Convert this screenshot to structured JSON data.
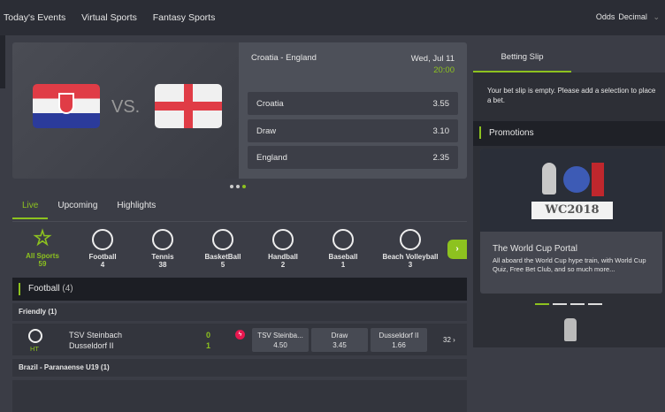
{
  "nav": {
    "items": [
      "Today's Events",
      "Virtual Sports",
      "Fantasy Sports"
    ],
    "odds_label": "Odds",
    "odds_value": "Decimal"
  },
  "hero": {
    "match": "Croatia - England",
    "date": "Wed, Jul 11",
    "time": "20:00",
    "vs": "VS.",
    "odds": [
      {
        "label": "Croatia",
        "value": "3.55"
      },
      {
        "label": "Draw",
        "value": "3.10"
      },
      {
        "label": "England",
        "value": "2.35"
      }
    ]
  },
  "tabs": [
    "Live",
    "Upcoming",
    "Highlights"
  ],
  "sports": [
    {
      "name": "All Sports",
      "count": "59"
    },
    {
      "name": "Football",
      "count": "4"
    },
    {
      "name": "Tennis",
      "count": "38"
    },
    {
      "name": "BasketBall",
      "count": "5"
    },
    {
      "name": "Handball",
      "count": "2"
    },
    {
      "name": "Baseball",
      "count": "1"
    },
    {
      "name": "Beach Volleyball",
      "count": "3"
    }
  ],
  "section": {
    "title": "Football",
    "count": "(4)"
  },
  "leagues": [
    "Friendly (1)",
    "Brazil - Paranaense U19 (1)"
  ],
  "match": {
    "status": "HT",
    "home": "TSV Steinbach",
    "away": "Dusseldorf II",
    "home_score": "0",
    "away_score": "1",
    "odds": [
      {
        "label": "TSV Steinba...",
        "value": "4.50"
      },
      {
        "label": "Draw",
        "value": "3.45"
      },
      {
        "label": "Dusseldorf II",
        "value": "1.66"
      }
    ],
    "more": "32 ›"
  },
  "slip": {
    "tab": "Betting Slip",
    "empty": "Your bet slip is empty. Please add a selection to place a bet."
  },
  "promotions": {
    "title": "Promotions",
    "banner": "WC2018",
    "card_title": "The World Cup Portal",
    "card_text": "All aboard the World Cup hype train, with World Cup Quiz, Free Bet Club, and so much more..."
  },
  "colors": {
    "accent": "#8dc21f",
    "live": "#e8174f"
  }
}
